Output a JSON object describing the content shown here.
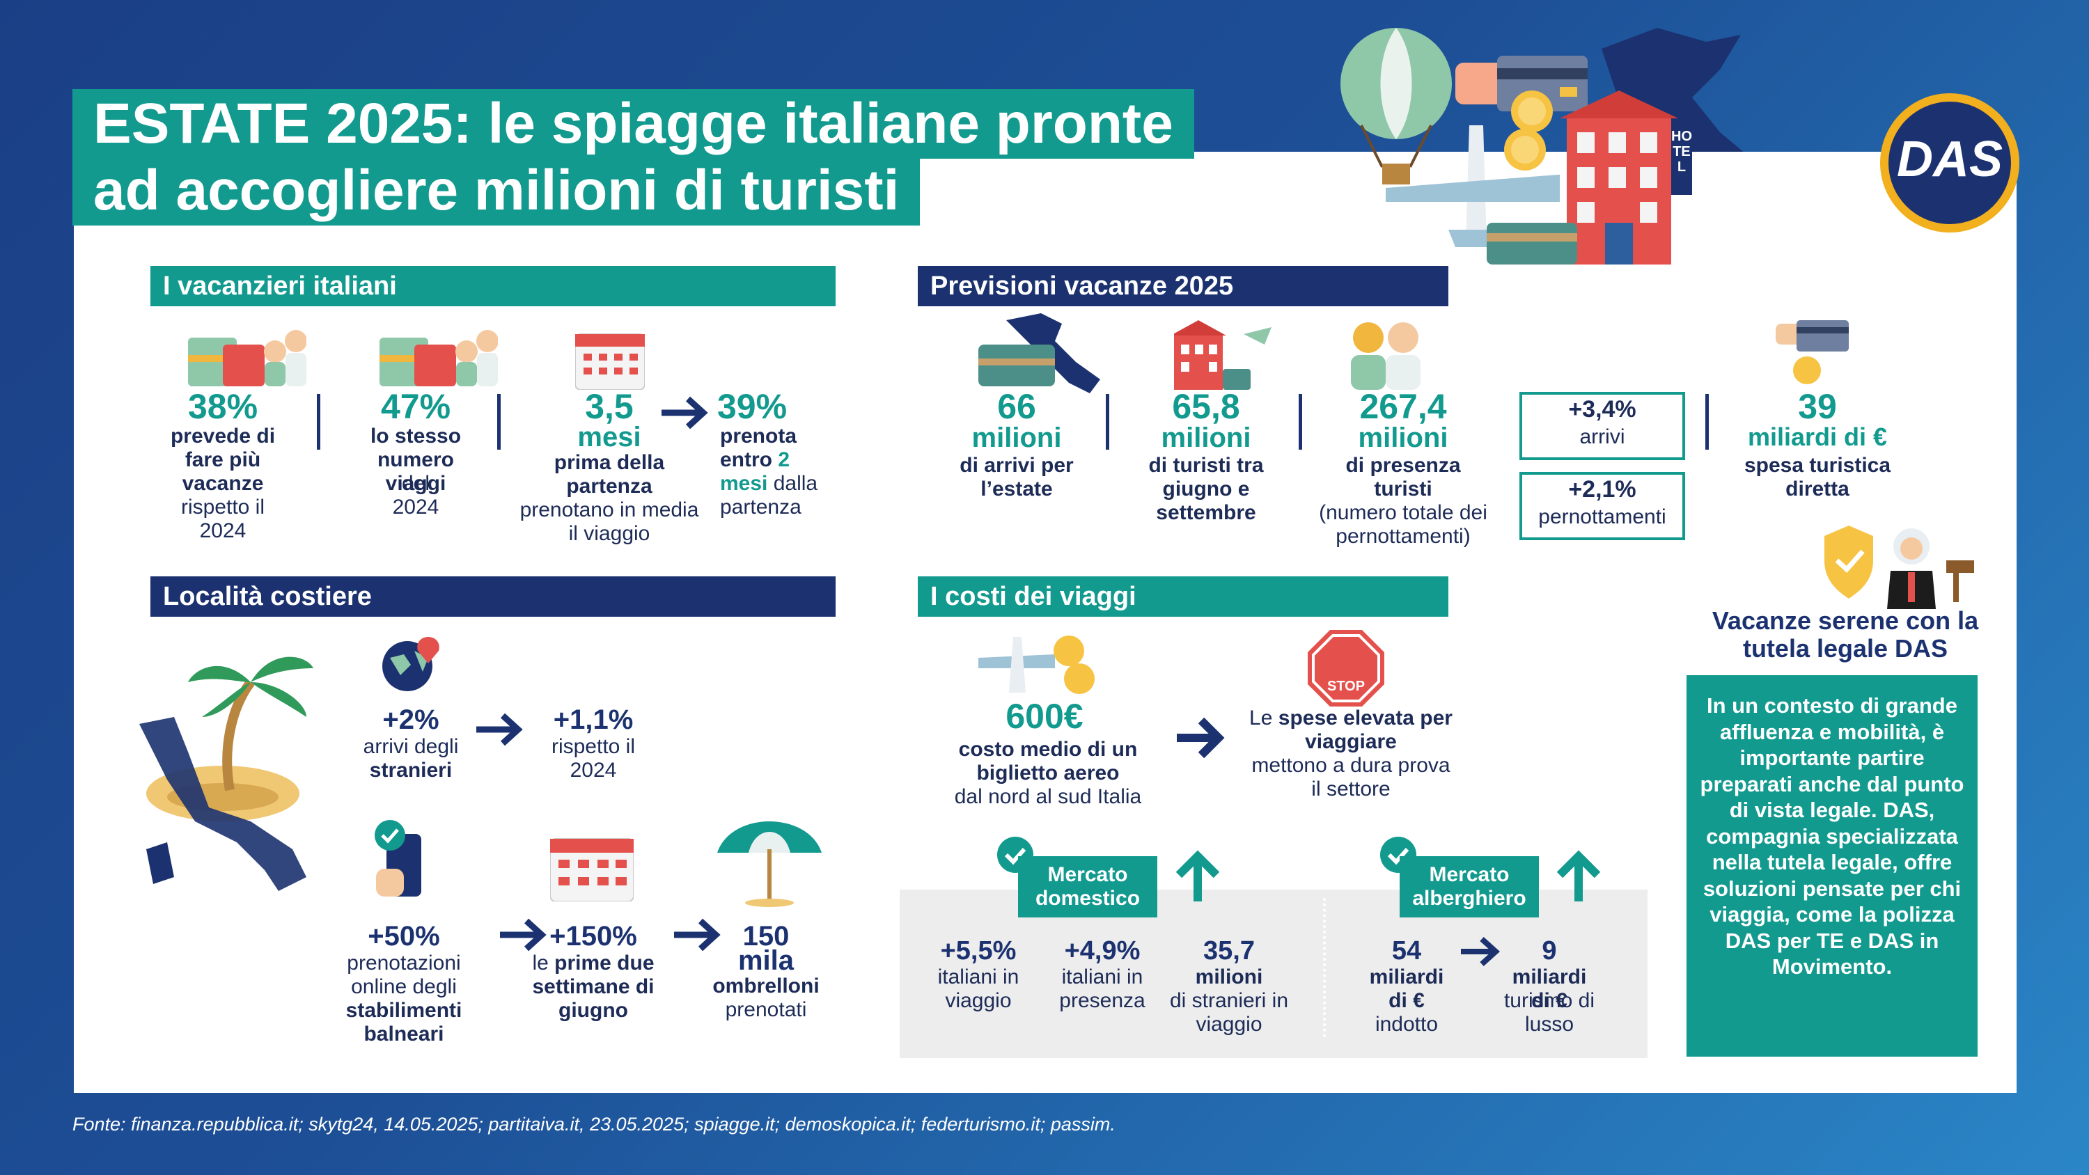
{
  "title": {
    "line1": "ESTATE 2025: le spiagge italiane pronte",
    "line2": "ad accogliere milioni di turisti"
  },
  "logo": {
    "text": "DAS"
  },
  "hotel_sign": "HOTEL",
  "vacanzieri": {
    "heading": "I vacanzieri italiani",
    "s1": {
      "value": "38%",
      "b": "prevede di fare più vacanze",
      "t": "rispetto il 2024"
    },
    "s2": {
      "value": "47%",
      "b": "lo stesso numero viaggi",
      "t1": "del",
      "t2": "2024"
    },
    "s3": {
      "value": "3,5",
      "unit": "mesi",
      "b": "prima della partenza",
      "t": "prenotano in media il viaggio"
    },
    "s4": {
      "value": "39%",
      "b1": "prenota entro",
      "hl": "2",
      "b2": "mesi",
      "t1": "dalla",
      "t2": "partenza"
    }
  },
  "previsioni": {
    "heading": "Previsioni vacanze 2025",
    "p1": {
      "value": "66",
      "unit": "milioni",
      "t": "di arrivi per l’estate"
    },
    "p2": {
      "value": "65,8",
      "unit": "milioni",
      "t": "di turisti tra giugno e settembre"
    },
    "p3": {
      "value": "267,4",
      "unit": "milioni",
      "b": "di presenza turisti",
      "t": "(numero totale dei pernottamenti)"
    },
    "box1": {
      "value": "+3,4%",
      "label": "arrivi"
    },
    "box2": {
      "value": "+2,1%",
      "label": "pernottamenti"
    },
    "p4": {
      "value": "39",
      "unit": "miliardi di €",
      "t": "spesa turistica diretta"
    }
  },
  "localita": {
    "heading": "Località costiere",
    "a1": {
      "value": "+2%",
      "t": "arrivi degli",
      "b": "stranieri"
    },
    "a2": {
      "value": "+1,1%",
      "t": "rispetto il 2024"
    },
    "b1": {
      "value": "+50%",
      "t": "prenotazioni online degli",
      "b": "stabilimenti balneari"
    },
    "b2": {
      "value": "+150%",
      "t": "le",
      "b": "prime due settimane di giugno"
    },
    "b3": {
      "value": "150",
      "unit": "mila",
      "b": "ombrelloni",
      "t": "prenotati"
    }
  },
  "costi": {
    "heading": "I costi dei viaggi",
    "c1": {
      "value": "600€",
      "b": "costo medio di un biglietto aereo",
      "t": "dal nord al sud Italia"
    },
    "c2": {
      "t1": "Le",
      "b": "spese elevata per viaggiare",
      "t2": "mettono a dura prova il settore"
    },
    "stop": "STOP",
    "domestico": {
      "label": "Mercato domestico",
      "m1": {
        "value": "+5,5%",
        "t": "italiani in viaggio"
      },
      "m2": {
        "value": "+4,9%",
        "t": "italiani in presenza"
      },
      "m3": {
        "value": "35,7",
        "b": "milioni",
        "t": "di stranieri in viaggio"
      }
    },
    "alberghiero": {
      "label": "Mercato alberghiero",
      "h1": {
        "value": "54",
        "b": "miliardi di €",
        "t": "indotto"
      },
      "h2": {
        "value": "9",
        "b": "miliardi di €",
        "t": "turismo di lusso"
      }
    }
  },
  "das": {
    "heading": "Vacanze serene con la tutela legale DAS",
    "body": "In un contesto di grande affluenza e mobilità, è importante partire preparati anche dal punto di vista legale. DAS, compagnia specializzata nella tutela legale, offre soluzioni pensate per chi viaggia, come la polizza DAS per TE e DAS in Movimento."
  },
  "source": "Fonte: finanza.repubblica.it; skytg24, 14.05.2025; partitaiva.it, 23.05.2025; spiagge.it; demoskopica.it; federturismo.it; passim.",
  "colors": {
    "teal": "#129a8f",
    "navy": "#1c3270",
    "background": "#1d4f96",
    "gray_panel": "#ededed"
  }
}
